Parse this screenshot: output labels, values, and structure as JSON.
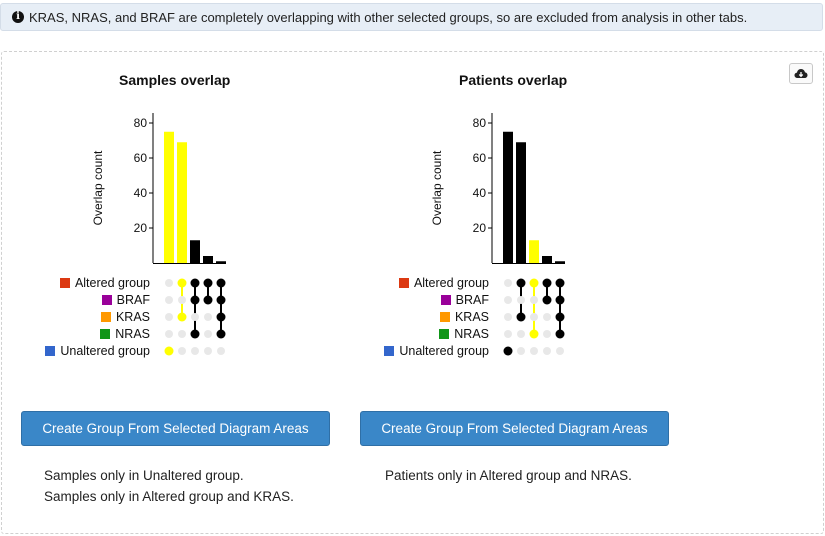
{
  "banner": {
    "icon": "info-icon",
    "text": "KRAS, NRAS, and BRAF are completely overlapping with other selected groups, so are excluded from analysis in other tabs."
  },
  "download_icon": "cloud-download-icon",
  "colors": {
    "highlight": "#ffff00",
    "bar_default": "#000000",
    "dot_inactive": "#e8e8e8",
    "button_bg": "#3a87c8"
  },
  "sets": [
    {
      "name": "Altered group",
      "color": "#dc3912"
    },
    {
      "name": "BRAF",
      "color": "#990099"
    },
    {
      "name": "KRAS",
      "color": "#ff9900"
    },
    {
      "name": "NRAS",
      "color": "#109618"
    },
    {
      "name": "Unaltered group",
      "color": "#3366cc"
    }
  ],
  "charts": [
    {
      "title": "Samples overlap",
      "ylabel": "Overlap count",
      "yticks": [
        "20",
        "40",
        "60",
        "80"
      ],
      "button_label": "Create Group From Selected Diagram Areas",
      "selection_text": [
        "Samples only in Unaltered group.",
        "Samples only in Altered group and KRAS."
      ]
    },
    {
      "title": "Patients overlap",
      "ylabel": "Overlap count",
      "yticks": [
        "20",
        "40",
        "60",
        "80"
      ],
      "button_label": "Create Group From Selected Diagram Areas",
      "selection_text": [
        "Patients only in Altered group and NRAS."
      ]
    }
  ],
  "chart_data": [
    {
      "type": "bar",
      "title": "Samples overlap",
      "ylabel": "Overlap count",
      "ylim": [
        0,
        85
      ],
      "values": [
        75,
        69,
        13,
        4,
        1
      ],
      "intersections": [
        [
          4
        ],
        [
          0,
          2
        ],
        [
          0,
          1,
          3
        ],
        [
          0,
          1
        ],
        [
          0,
          1,
          2,
          3
        ]
      ],
      "selected": [
        true,
        true,
        false,
        false,
        false
      ]
    },
    {
      "type": "bar",
      "title": "Patients overlap",
      "ylabel": "Overlap count",
      "ylim": [
        0,
        85
      ],
      "values": [
        75,
        69,
        13,
        4,
        1
      ],
      "intersections": [
        [
          4
        ],
        [
          0,
          2
        ],
        [
          0,
          3
        ],
        [
          0,
          1
        ],
        [
          0,
          1,
          2,
          3
        ]
      ],
      "selected": [
        false,
        false,
        true,
        false,
        false
      ]
    }
  ]
}
